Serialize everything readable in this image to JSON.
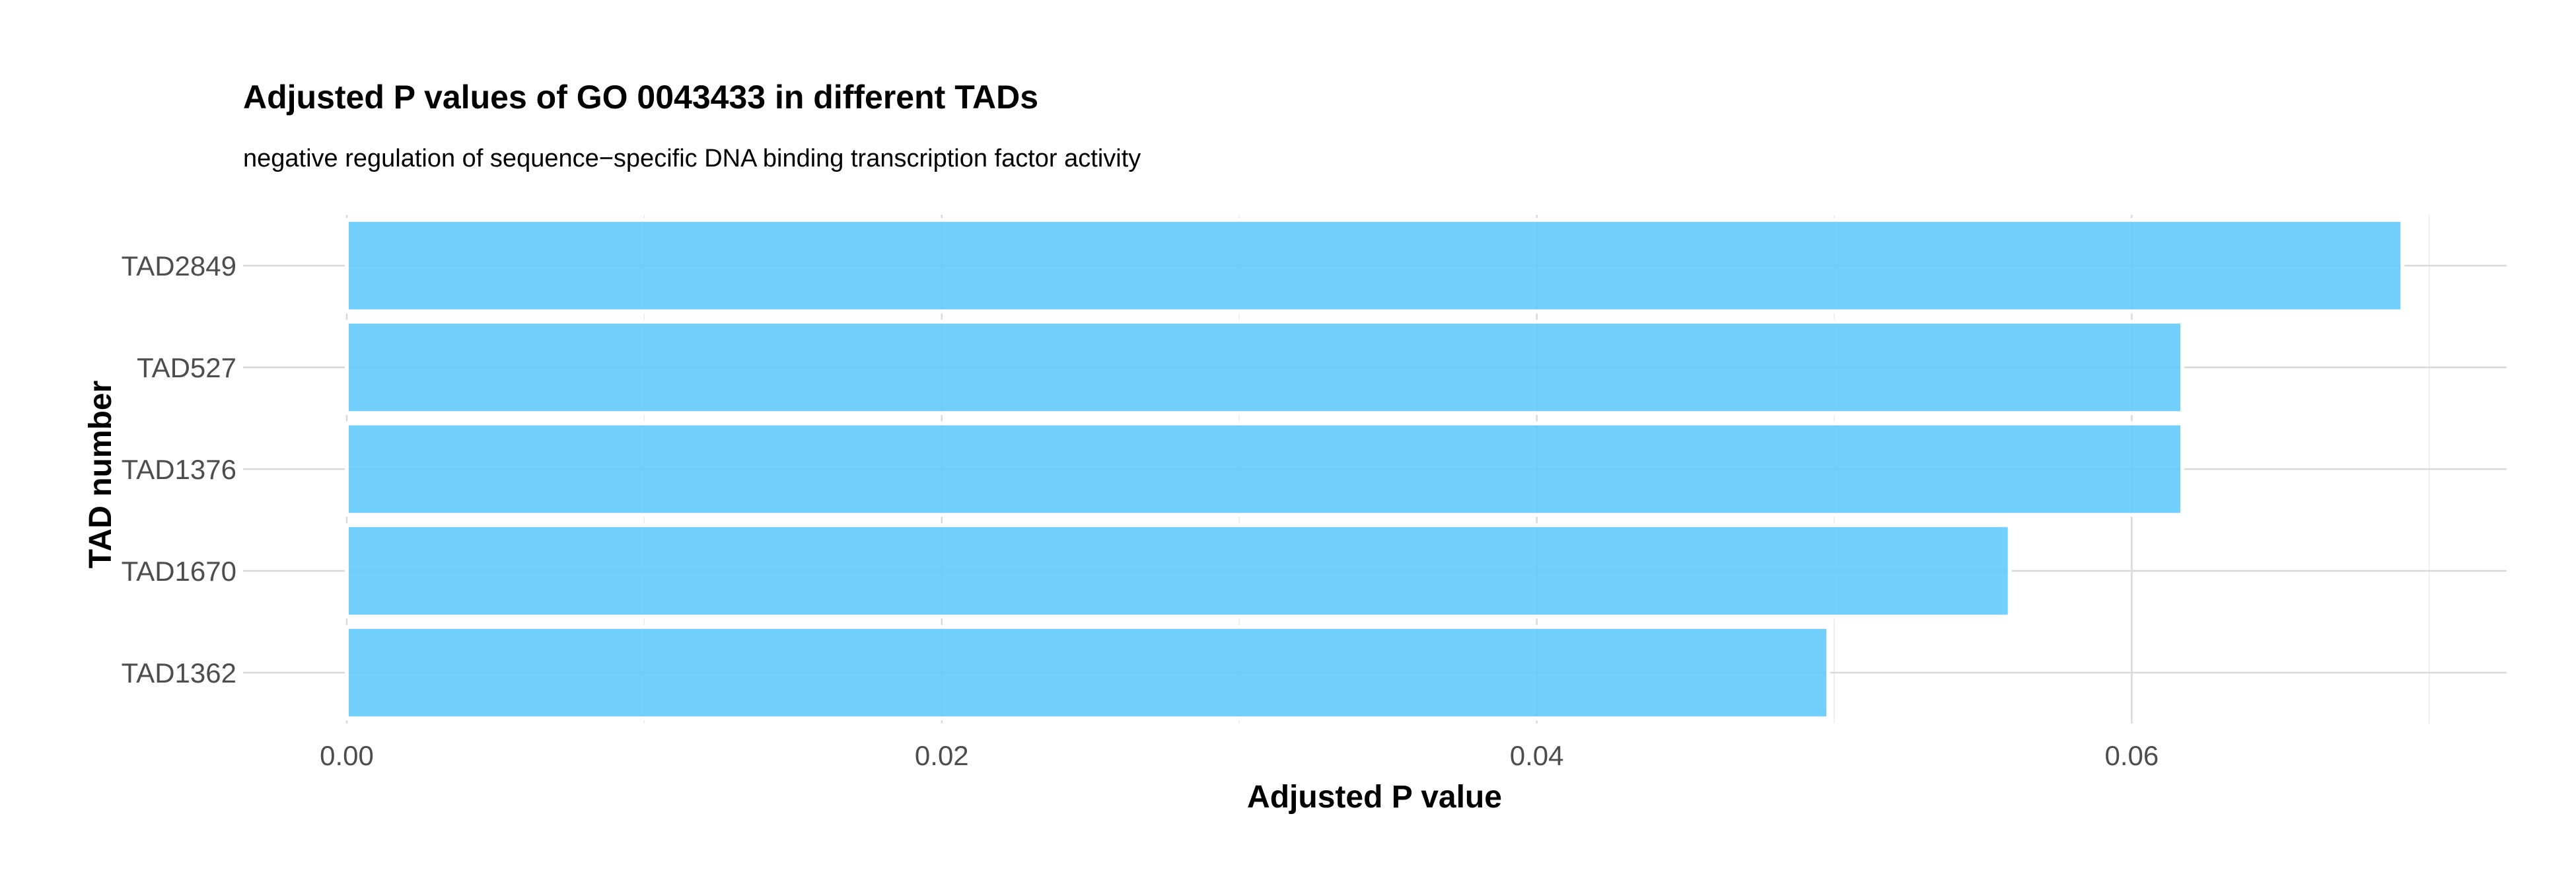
{
  "chart_data": {
    "type": "bar",
    "orientation": "horizontal",
    "title": "Adjusted P values of GO 0043433 in different TADs",
    "subtitle": "negative regulation of sequence−specific DNA binding transcription factor activity",
    "xlabel": "Adjusted P value",
    "ylabel": "TAD number",
    "categories": [
      "TAD2849",
      "TAD527",
      "TAD1376",
      "TAD1670",
      "TAD1362"
    ],
    "values": [
      0.0691,
      0.0617,
      0.0617,
      0.0559,
      0.0498
    ],
    "xlim": [
      0,
      0.0725
    ],
    "x_ticks": [
      0,
      0.02,
      0.04,
      0.06
    ],
    "x_tick_labels": [
      "0.00",
      "0.02",
      "0.04",
      "0.06"
    ],
    "grid": true,
    "bar_color": "#5bc8fb",
    "bar_opacity": 0.85
  }
}
